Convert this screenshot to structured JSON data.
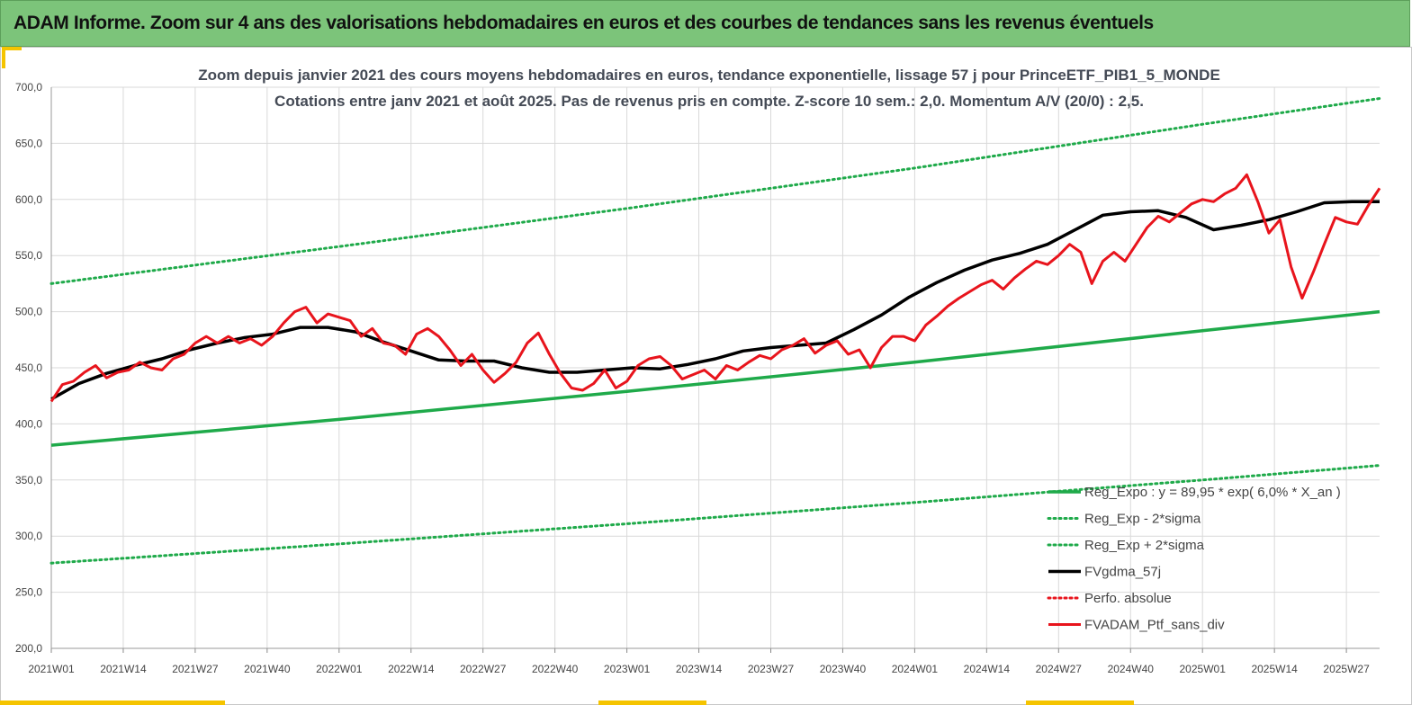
{
  "header": {
    "title": "ADAM Informe. Zoom sur 4 ans des valorisations hebdomadaires en euros et des courbes de tendances sans les revenus éventuels"
  },
  "colors": {
    "banner": "#7cc47a",
    "accent": "#f5c400"
  },
  "chart_data": {
    "type": "line",
    "title": "Zoom depuis janvier 2021 des cours moyens hebdomadaires  en euros, tendance exponentielle, lissage 57 j pour PrinceETF_PIB1_5_MONDE",
    "subtitle": "Cotations entre janv 2021 et août 2025. Pas de revenus pris en compte. Z-score 10 sem.: 2,0. Momentum A/V (20/0) : 2,5.",
    "xlabel": "",
    "ylabel": "",
    "ylim": [
      200,
      700
    ],
    "yticks": [
      "700,0",
      "650,0",
      "600,0",
      "550,0",
      "500,0",
      "450,0",
      "400,0",
      "350,0",
      "300,0",
      "250,0",
      "200,0"
    ],
    "x_tick_labels": [
      "2021W01",
      "2021W14",
      "2021W27",
      "2021W40",
      "2022W01",
      "2022W14",
      "2022W27",
      "2022W40",
      "2023W01",
      "2023W14",
      "2023W27",
      "2023W40",
      "2024W01",
      "2024W14",
      "2024W27",
      "2024W40",
      "2025W01",
      "2025W14",
      "2025W27"
    ],
    "x_week_index_range": [
      0,
      240
    ],
    "grid": true,
    "legend_position": "bottom-right",
    "series": [
      {
        "name": "Reg_Expo : y = 89,95 * exp( 6,0% *  X_an )",
        "color": "#1faa4a",
        "style": "solid",
        "x": [
          0,
          52,
          104,
          156,
          208,
          240
        ],
        "values": [
          381,
          404,
          429,
          455,
          483,
          500
        ]
      },
      {
        "name": "Reg_Exp - 2*sigma",
        "color": "#1faa4a",
        "style": "dotted",
        "x": [
          0,
          52,
          104,
          156,
          208,
          240
        ],
        "values": [
          276,
          293,
          311,
          330,
          350,
          363
        ]
      },
      {
        "name": "Reg_Exp + 2*sigma",
        "color": "#1faa4a",
        "style": "dotted",
        "x": [
          0,
          52,
          104,
          156,
          208,
          240
        ],
        "values": [
          525,
          558,
          592,
          628,
          667,
          690
        ]
      },
      {
        "name": "FVgdma_57j",
        "color": "#000000",
        "style": "solid",
        "x": [
          0,
          5,
          10,
          15,
          20,
          25,
          30,
          35,
          40,
          45,
          50,
          55,
          60,
          65,
          70,
          75,
          80,
          85,
          90,
          95,
          100,
          105,
          110,
          115,
          120,
          125,
          130,
          135,
          140,
          145,
          150,
          155,
          160,
          165,
          170,
          175,
          180,
          185,
          190,
          195,
          200,
          205,
          210,
          215,
          220,
          225,
          230,
          235,
          240
        ],
        "values": [
          422,
          436,
          445,
          452,
          458,
          466,
          472,
          477,
          480,
          486,
          486,
          482,
          473,
          465,
          457,
          456,
          456,
          450,
          446,
          446,
          448,
          450,
          449,
          453,
          458,
          465,
          468,
          470,
          472,
          484,
          497,
          513,
          526,
          537,
          546,
          552,
          560,
          573,
          586,
          589,
          590,
          584,
          573,
          577,
          582,
          589,
          597,
          598,
          598
        ]
      },
      {
        "name": "Perfo. absolue",
        "color": "#e8141c",
        "style": "dotted",
        "x": [],
        "values": []
      },
      {
        "name": "FVADAM_Ptf_sans_div",
        "color": "#e8141c",
        "style": "solid",
        "x": [
          0,
          2,
          4,
          6,
          8,
          10,
          12,
          14,
          16,
          18,
          20,
          22,
          24,
          26,
          28,
          30,
          32,
          34,
          36,
          38,
          40,
          42,
          44,
          46,
          48,
          50,
          52,
          54,
          56,
          58,
          60,
          62,
          64,
          66,
          68,
          70,
          72,
          74,
          76,
          78,
          80,
          82,
          84,
          86,
          88,
          90,
          92,
          94,
          96,
          98,
          100,
          102,
          104,
          106,
          108,
          110,
          112,
          114,
          116,
          118,
          120,
          122,
          124,
          126,
          128,
          130,
          132,
          134,
          136,
          138,
          140,
          142,
          144,
          146,
          148,
          150,
          152,
          154,
          156,
          158,
          160,
          162,
          164,
          166,
          168,
          170,
          172,
          174,
          176,
          178,
          180,
          182,
          184,
          186,
          188,
          190,
          192,
          194,
          196,
          198,
          200,
          202,
          204,
          206,
          208,
          210,
          212,
          214,
          216,
          218,
          220,
          222,
          224,
          226,
          228,
          230,
          232,
          234,
          236,
          238,
          240
        ],
        "values": [
          420,
          435,
          438,
          446,
          452,
          441,
          446,
          448,
          455,
          450,
          448,
          458,
          462,
          472,
          478,
          472,
          478,
          472,
          476,
          470,
          478,
          490,
          500,
          504,
          490,
          498,
          495,
          492,
          478,
          485,
          472,
          470,
          462,
          480,
          485,
          478,
          466,
          452,
          462,
          448,
          437,
          445,
          455,
          472,
          481,
          462,
          445,
          432,
          430,
          436,
          448,
          432,
          438,
          452,
          458,
          460,
          452,
          440,
          444,
          448,
          440,
          452,
          448,
          455,
          461,
          458,
          466,
          470,
          476,
          463,
          470,
          474,
          462,
          466,
          450,
          468,
          478,
          478,
          474,
          488,
          496,
          505,
          512,
          518,
          524,
          528,
          520,
          530,
          538,
          545,
          542,
          550,
          560,
          553,
          525,
          545,
          553,
          545,
          560,
          575,
          585,
          580,
          588,
          596,
          600,
          598,
          605,
          610,
          622,
          598,
          570,
          582,
          540,
          512,
          535,
          560,
          584,
          580,
          578,
          595,
          610
        ]
      }
    ]
  }
}
